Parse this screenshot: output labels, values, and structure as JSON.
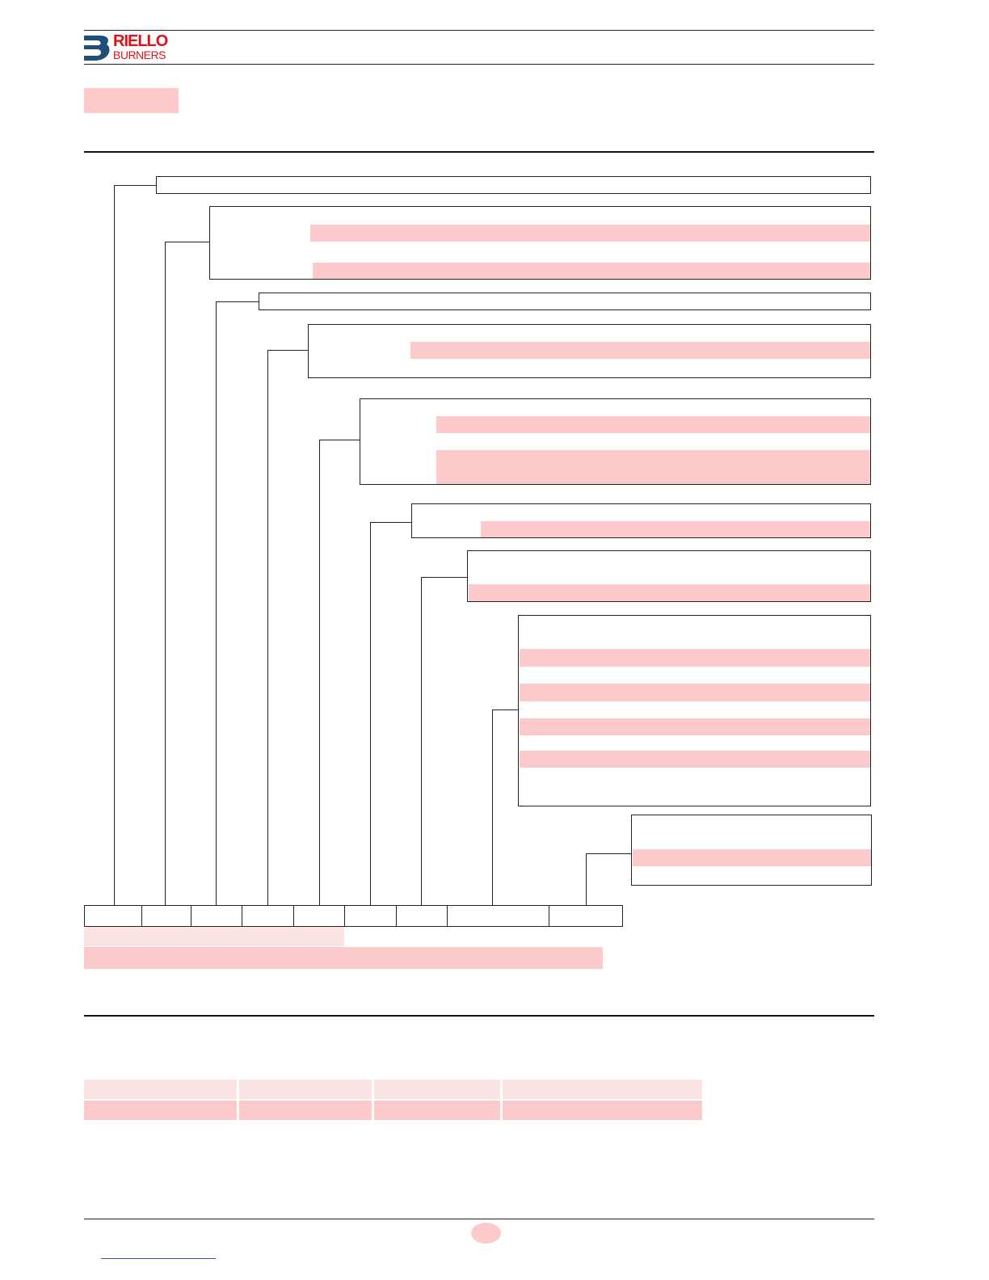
{
  "header": {
    "logo_line1": "RIELLO",
    "logo_line2": "BURNERS"
  },
  "colors": {
    "brand_red": "#e0101a",
    "brand_blue": "#1f4e79",
    "highlight": "#fccaca",
    "highlight_light": "#fde4e4",
    "rule": "#222222"
  },
  "icons": {
    "logo": "riello-b-logo-icon"
  }
}
